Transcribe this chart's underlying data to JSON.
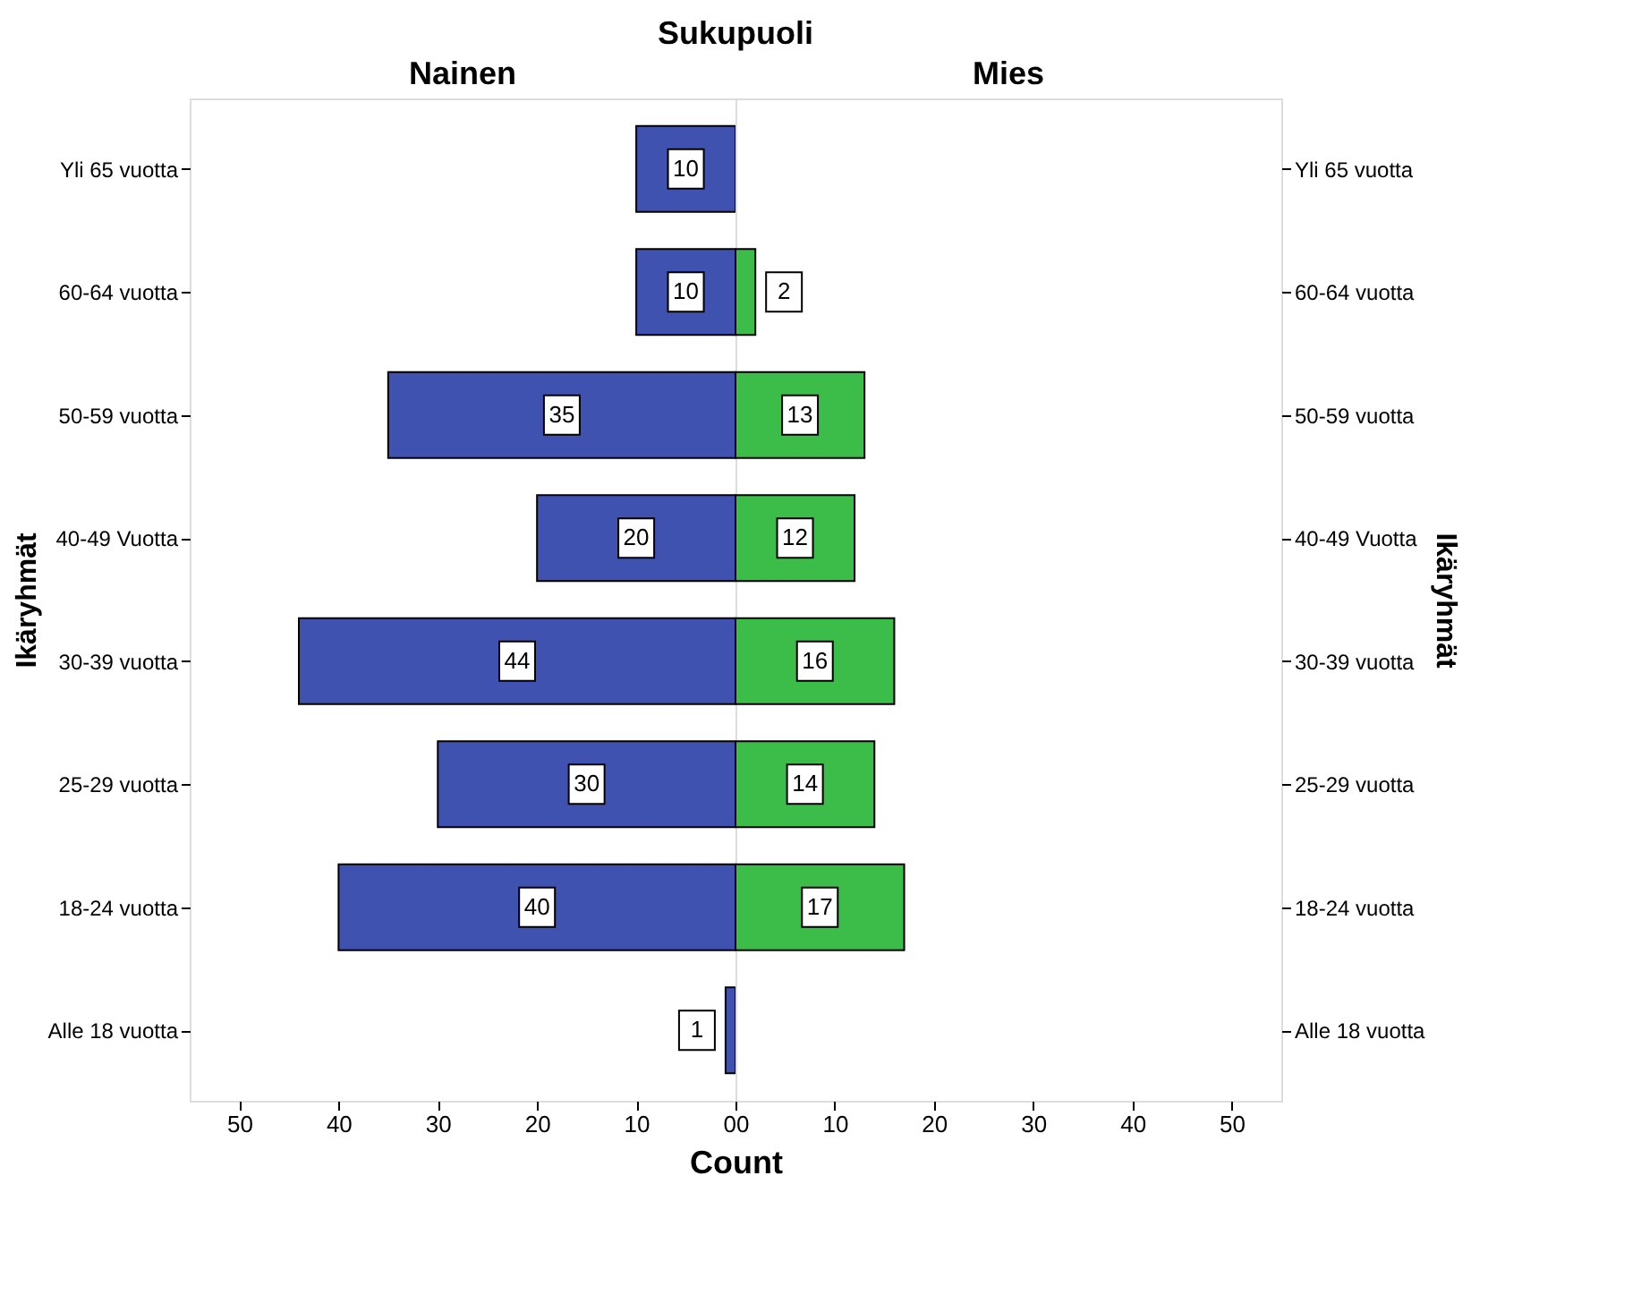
{
  "chart_data": [
    {
      "type": "bar",
      "orientation": "horizontal",
      "title": "Nainen",
      "annotations": [
        "Sukupuoli"
      ],
      "xlabel": "Count",
      "ylabel": "Ikäryhmät",
      "categories": [
        "Yli 65 vuotta",
        "60-64 vuotta",
        "50-59 vuotta",
        "40-49 Vuotta",
        "30-39 vuotta",
        "25-29 vuotta",
        "18-24 vuotta",
        "Alle 18 vuotta"
      ],
      "series": [
        {
          "color": "#3f52b0",
          "values": [
            10,
            10,
            35,
            20,
            44,
            30,
            40,
            1
          ]
        }
      ],
      "xlim": [
        55,
        0
      ],
      "xticks": [
        50,
        40,
        30,
        20,
        10,
        0
      ],
      "data_labels": true,
      "grid": false
    },
    {
      "type": "bar",
      "orientation": "horizontal",
      "title": "Mies",
      "y2label": "Ikäryhmät",
      "categories": [
        "Yli 65 vuotta",
        "60-64 vuotta",
        "50-59 vuotta",
        "40-49 Vuotta",
        "30-39 vuotta",
        "25-29 vuotta",
        "18-24 vuotta",
        "Alle 18 vuotta"
      ],
      "series": [
        {
          "color": "#3cbd4a",
          "values": [
            null,
            2,
            13,
            12,
            16,
            14,
            17,
            null
          ]
        }
      ],
      "xlim": [
        0,
        55
      ],
      "xticks": [
        0,
        10,
        20,
        30,
        40,
        50
      ],
      "data_labels": true,
      "grid": false
    }
  ]
}
